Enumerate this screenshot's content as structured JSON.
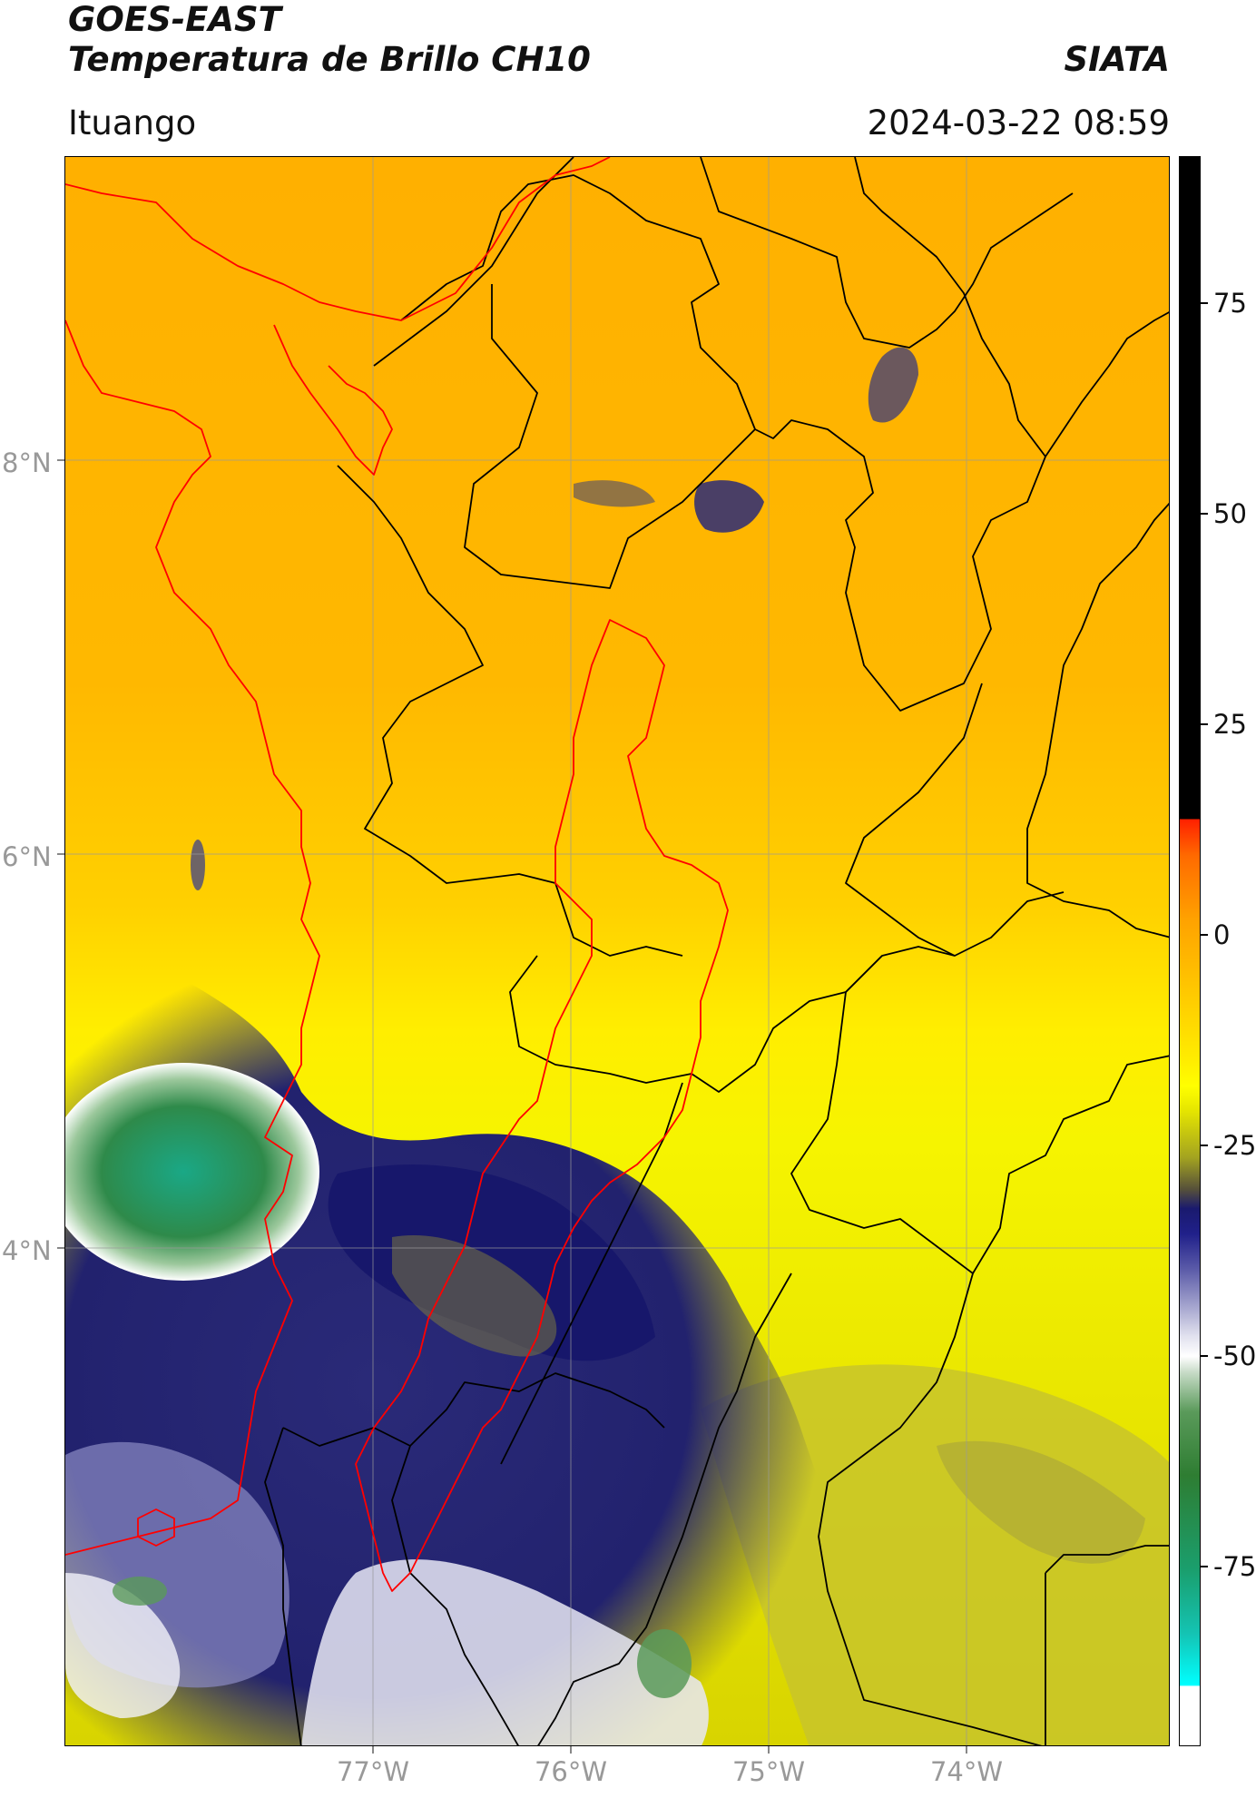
{
  "header": {
    "title_line1": "GOES-EAST",
    "title_line2": "Temperatura de Brillo CH10",
    "brand": "SIATA",
    "region": "Ituango",
    "datetime": "2024-03-22 08:59"
  },
  "map": {
    "lat_labels": [
      "8°N",
      "6°N",
      "4°N"
    ],
    "lon_labels": [
      "77°W",
      "76°W",
      "75°W",
      "74°W"
    ],
    "boundary_colors": {
      "basin_outline": "#ff0000",
      "admin_borders": "#000000",
      "gridlines": "#999999"
    }
  },
  "colorbar": {
    "ticks": [
      "75",
      "50",
      "25",
      "0",
      "-25",
      "-50",
      "-75"
    ],
    "colors": {
      "warm_high": "#000000",
      "near_zero": "#ff2000",
      "slightly_below_zero": "#ffa200",
      "moderate_cold": "#ffff00",
      "cold": "#1a1a6e",
      "very_cold": "#ffffff",
      "extreme_cold": "#14c4b4"
    }
  }
}
